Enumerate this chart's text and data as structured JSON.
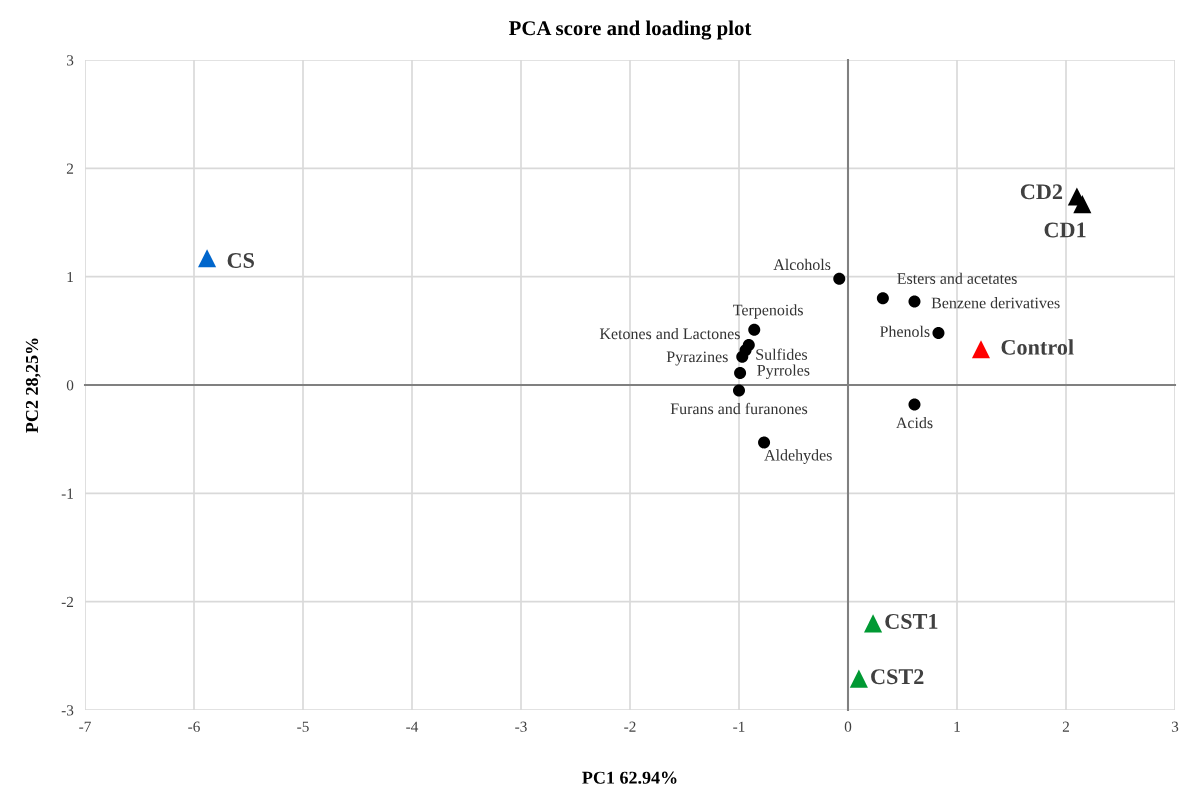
{
  "chart_data": {
    "type": "scatter",
    "title": "PCA score and loading plot",
    "xlabel": "PC1 62.94%",
    "ylabel": "PC2 28,25%",
    "xlim": [
      -7,
      3
    ],
    "xticks": [
      -7,
      -6,
      -5,
      -4,
      -3,
      -2,
      -1,
      0,
      1,
      2,
      3
    ],
    "ylim": [
      -3,
      3
    ],
    "yticks": [
      -3,
      -2,
      -1,
      0,
      1,
      2,
      3
    ],
    "grid": true,
    "legend": false,
    "series": [
      {
        "name": "CS",
        "color": "#0066cc",
        "marker": "triangle",
        "x": [
          -5.88
        ],
        "values": [
          1.17
        ]
      },
      {
        "name": "CD2",
        "color": "#000000",
        "marker": "triangle",
        "x": [
          2.1
        ],
        "values": [
          1.74
        ]
      },
      {
        "name": "CD1",
        "color": "#000000",
        "marker": "triangle",
        "x": [
          2.15
        ],
        "values": [
          1.67
        ]
      },
      {
        "name": "Control",
        "color": "#ff0000",
        "marker": "triangle",
        "x": [
          1.22
        ],
        "values": [
          0.33
        ]
      },
      {
        "name": "CST1",
        "color": "#009933",
        "marker": "triangle",
        "x": [
          0.23
        ],
        "values": [
          -2.2
        ]
      },
      {
        "name": "CST2",
        "color": "#009933",
        "marker": "triangle",
        "x": [
          0.1
        ],
        "values": [
          -2.71
        ]
      },
      {
        "name": "Alcohols",
        "color": "#000000",
        "marker": "circle",
        "x": [
          -0.08
        ],
        "values": [
          0.98
        ]
      },
      {
        "name": "Esters and acetates",
        "color": "#000000",
        "marker": "circle",
        "x": [
          0.32
        ],
        "values": [
          0.8
        ]
      },
      {
        "name": "Benzene derivatives",
        "color": "#000000",
        "marker": "circle",
        "x": [
          0.61
        ],
        "values": [
          0.77
        ]
      },
      {
        "name": "Phenols",
        "color": "#000000",
        "marker": "circle",
        "x": [
          0.83
        ],
        "values": [
          0.48
        ]
      },
      {
        "name": "Terpenoids",
        "color": "#000000",
        "marker": "circle",
        "x": [
          -0.86
        ],
        "values": [
          0.51
        ]
      },
      {
        "name": "Ketones and Lactones",
        "color": "#000000",
        "marker": "circle",
        "x": [
          -0.91
        ],
        "values": [
          0.37
        ]
      },
      {
        "name": "Pyrazines",
        "color": "#000000",
        "marker": "circle",
        "x": [
          -0.97
        ],
        "values": [
          0.26
        ]
      },
      {
        "name": "Sulfides",
        "color": "#000000",
        "marker": "circle",
        "x": [
          -0.94
        ],
        "values": [
          0.32
        ]
      },
      {
        "name": "Pyrroles",
        "color": "#000000",
        "marker": "circle",
        "x": [
          -0.99
        ],
        "values": [
          0.11
        ]
      },
      {
        "name": "Furans and furanones",
        "color": "#000000",
        "marker": "circle",
        "x": [
          -1.0
        ],
        "values": [
          -0.05
        ]
      },
      {
        "name": "Acids",
        "color": "#000000",
        "marker": "circle",
        "x": [
          0.61
        ],
        "values": [
          -0.18
        ]
      },
      {
        "name": "Aldehydes",
        "color": "#000000",
        "marker": "circle",
        "x": [
          -0.77
        ],
        "values": [
          -0.53
        ]
      }
    ]
  }
}
